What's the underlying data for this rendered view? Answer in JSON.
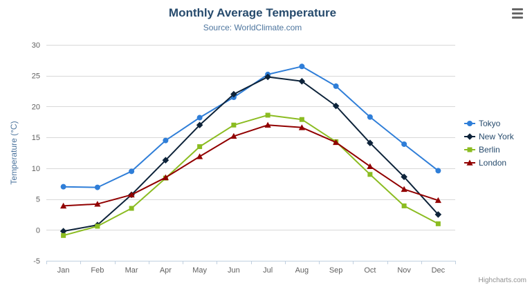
{
  "chart_data": {
    "type": "line",
    "title": "Monthly Average Temperature",
    "subtitle": "Source: WorldClimate.com",
    "categories": [
      "Jan",
      "Feb",
      "Mar",
      "Apr",
      "May",
      "Jun",
      "Jul",
      "Aug",
      "Sep",
      "Oct",
      "Nov",
      "Dec"
    ],
    "xlabel": "",
    "ylabel": "Temperature (°C)",
    "ylim": [
      -5,
      30
    ],
    "ytick_step": 5,
    "grid": "horizontal",
    "legend_position": "right",
    "series": [
      {
        "name": "Tokyo",
        "color": "#2f7ed8",
        "marker": "circle",
        "values": [
          7.0,
          6.9,
          9.5,
          14.5,
          18.2,
          21.5,
          25.2,
          26.5,
          23.3,
          18.3,
          13.9,
          9.6
        ]
      },
      {
        "name": "New York",
        "color": "#0d233a",
        "marker": "diamond",
        "values": [
          -0.2,
          0.8,
          5.7,
          11.3,
          17.0,
          22.0,
          24.8,
          24.1,
          20.1,
          14.1,
          8.6,
          2.5
        ]
      },
      {
        "name": "Berlin",
        "color": "#8bbc21",
        "marker": "square",
        "values": [
          -0.9,
          0.6,
          3.5,
          8.4,
          13.5,
          17.0,
          18.6,
          17.9,
          14.3,
          9.0,
          3.9,
          1.0
        ]
      },
      {
        "name": "London",
        "color": "#910000",
        "marker": "triangle",
        "values": [
          3.9,
          4.2,
          5.7,
          8.5,
          11.9,
          15.2,
          17.0,
          16.6,
          14.2,
          10.3,
          6.6,
          4.8
        ]
      }
    ],
    "credits": "Highcharts.com",
    "colors": {
      "title": "#274b6d",
      "subtitle": "#4d759e",
      "axis_label": "#606060",
      "axis_title": "#4d759e",
      "grid_line": "#d8d8d8",
      "axis_line": "#c0d0e0",
      "legend_text": "#274b6d",
      "credits_text": "#909090"
    }
  }
}
